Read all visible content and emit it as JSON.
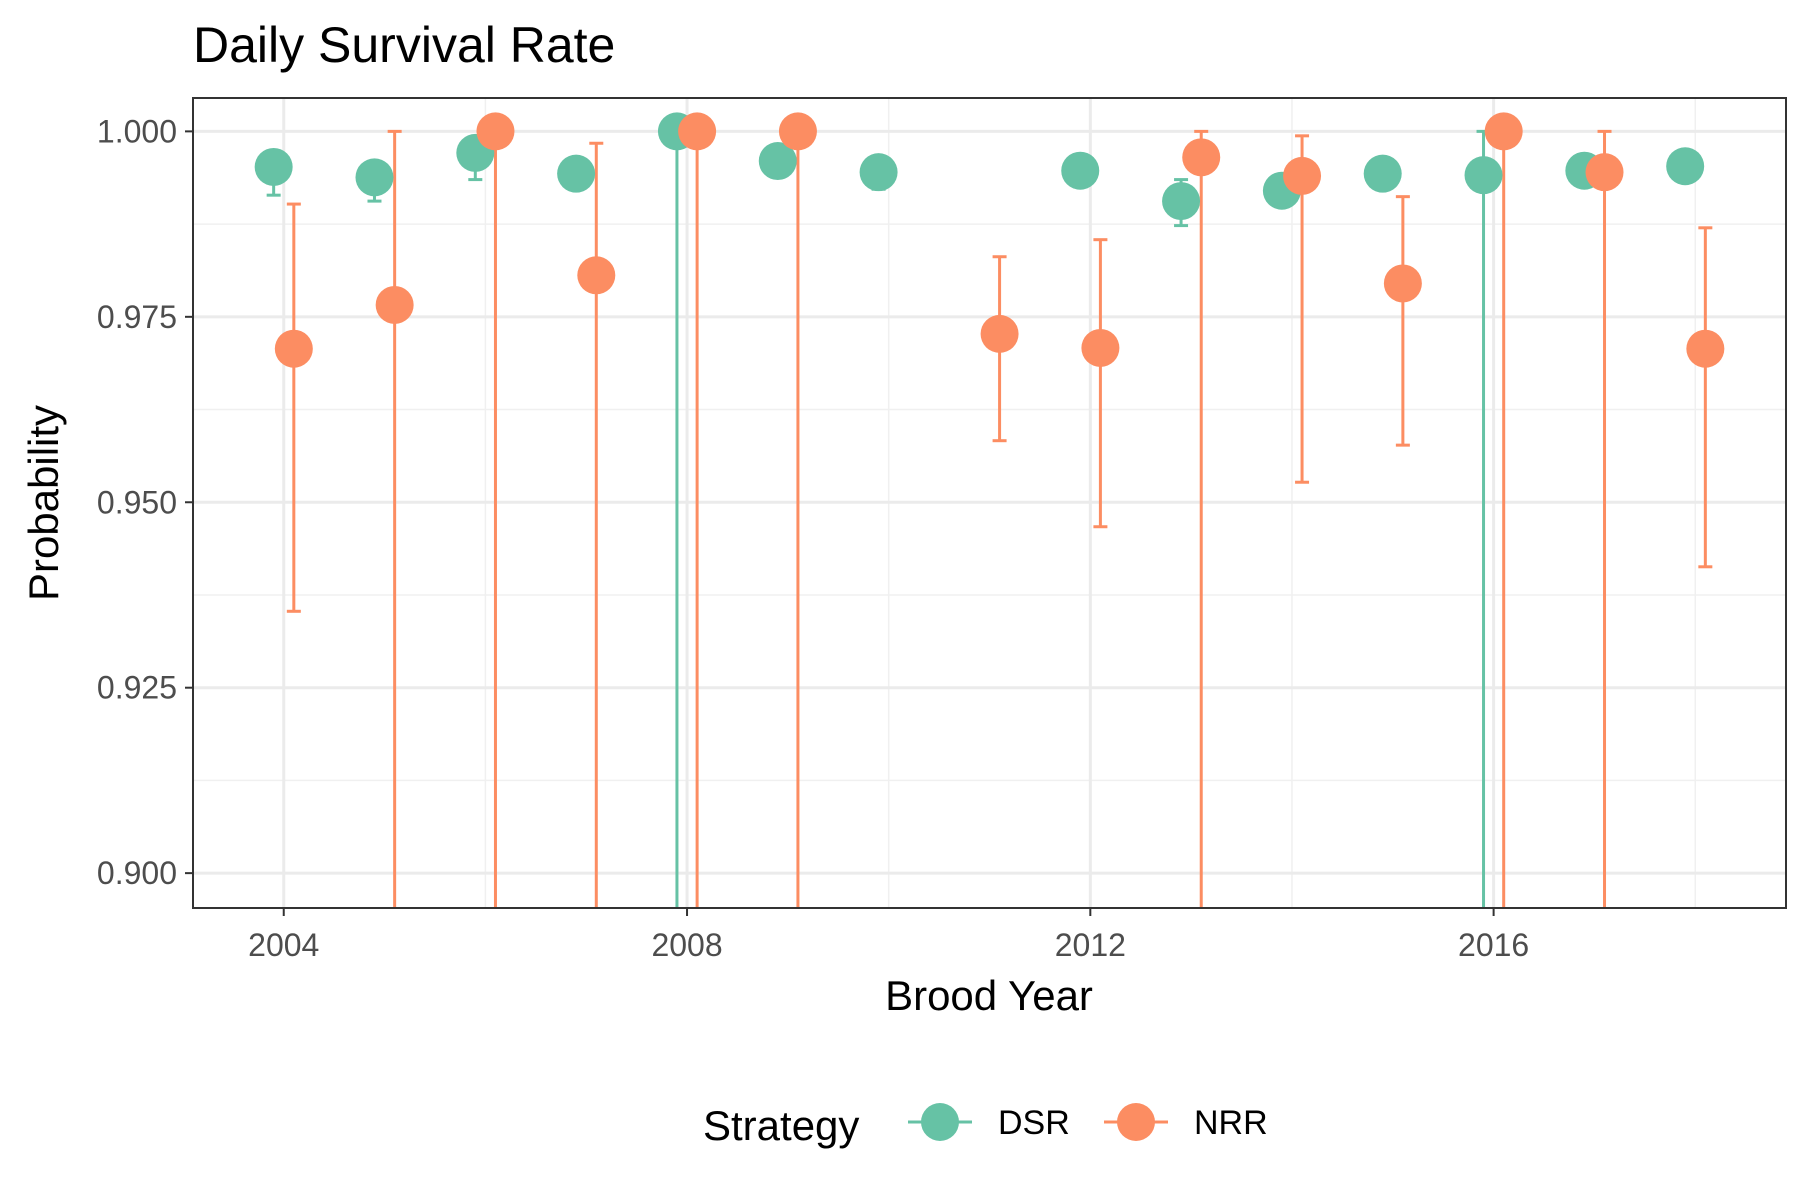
{
  "chart_data": {
    "type": "scatter",
    "title": "Daily Survival Rate",
    "xlabel": "Brood Year",
    "ylabel": "Probability",
    "xlim": [
      2003.1,
      2018.9
    ],
    "ylim": [
      0.8953,
      1.0045
    ],
    "xticks": [
      2004,
      2008,
      2012,
      2016
    ],
    "xtick_labels": [
      "2004",
      "2008",
      "2012",
      "2016"
    ],
    "yticks": [
      0.9,
      0.925,
      0.95,
      0.975,
      1.0
    ],
    "ytick_labels": [
      "0.900",
      "0.925",
      "0.950",
      "0.975",
      "1.000"
    ],
    "grid": true,
    "error_bars": true,
    "dodge": 0.2,
    "legend": {
      "title": "Strategy",
      "position": "bottom"
    },
    "series": [
      {
        "name": "DSR",
        "color": "#66C2A5",
        "points": [
          {
            "x": 2004,
            "y": 0.9952,
            "lower": 0.9914,
            "upper": 0.9965
          },
          {
            "x": 2005,
            "y": 0.9938,
            "lower": 0.9906,
            "upper": 0.9955
          },
          {
            "x": 2006,
            "y": 0.9971,
            "lower": 0.9935,
            "upper": 0.9984
          },
          {
            "x": 2007,
            "y": 0.9943,
            "lower": 0.993,
            "upper": 0.9955
          },
          {
            "x": 2008,
            "y": 1.0,
            "lower": 0.0,
            "upper": 1.0
          },
          {
            "x": 2009,
            "y": 0.996,
            "lower": 0.9945,
            "upper": 0.9972
          },
          {
            "x": 2010,
            "y": 0.9945,
            "lower": 0.9922,
            "upper": 0.9963
          },
          {
            "x": 2012,
            "y": 0.9947,
            "lower": 0.9925,
            "upper": 0.9963
          },
          {
            "x": 2013,
            "y": 0.9906,
            "lower": 0.9873,
            "upper": 0.9935
          },
          {
            "x": 2014,
            "y": 0.992,
            "lower": 0.9902,
            "upper": 0.9935
          },
          {
            "x": 2015,
            "y": 0.9943,
            "lower": 0.993,
            "upper": 0.9955
          },
          {
            "x": 2016,
            "y": 0.9941,
            "lower": 0.0,
            "upper": 1.0
          },
          {
            "x": 2017,
            "y": 0.9947,
            "lower": 0.9932,
            "upper": 0.996
          },
          {
            "x": 2018,
            "y": 0.9953,
            "lower": 0.994,
            "upper": 0.9965
          }
        ]
      },
      {
        "name": "NRR",
        "color": "#FC8D62",
        "points": [
          {
            "x": 2004,
            "y": 0.9707,
            "lower": 0.9353,
            "upper": 0.9902
          },
          {
            "x": 2005,
            "y": 0.9766,
            "lower": 0.0,
            "upper": 1.0
          },
          {
            "x": 2006,
            "y": 1.0,
            "lower": 0.0,
            "upper": 1.0
          },
          {
            "x": 2007,
            "y": 0.9806,
            "lower": 0.0,
            "upper": 0.9984
          },
          {
            "x": 2008,
            "y": 1.0,
            "lower": 0.0,
            "upper": 1.0
          },
          {
            "x": 2009,
            "y": 1.0,
            "lower": 0.0,
            "upper": 1.0
          },
          {
            "x": 2011,
            "y": 0.9727,
            "lower": 0.9583,
            "upper": 0.9831
          },
          {
            "x": 2012,
            "y": 0.9708,
            "lower": 0.9467,
            "upper": 0.9854
          },
          {
            "x": 2013,
            "y": 0.9965,
            "lower": 0.0,
            "upper": 1.0
          },
          {
            "x": 2014,
            "y": 0.994,
            "lower": 0.9527,
            "upper": 0.9994
          },
          {
            "x": 2015,
            "y": 0.9795,
            "lower": 0.9577,
            "upper": 0.9912
          },
          {
            "x": 2016,
            "y": 1.0,
            "lower": 0.0,
            "upper": 1.0
          },
          {
            "x": 2017,
            "y": 0.9945,
            "lower": 0.0,
            "upper": 1.0
          },
          {
            "x": 2018,
            "y": 0.9707,
            "lower": 0.9413,
            "upper": 0.987
          }
        ]
      }
    ]
  }
}
